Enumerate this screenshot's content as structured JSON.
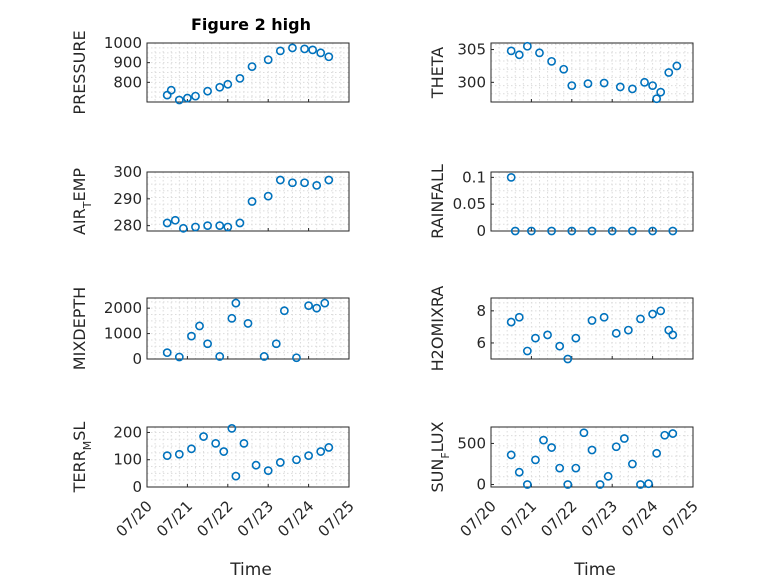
{
  "colors": {
    "marker": "#0072BD",
    "axis": "#262626",
    "grid": "#dcdcdc"
  },
  "figure_title": "Figure 2 high",
  "x_tick_labels": [
    "07/20",
    "07/21",
    "07/22",
    "07/23",
    "07/24",
    "07/25"
  ],
  "bottom_xlabel": "Time",
  "chart_data": [
    {
      "type": "scatter",
      "title": "Figure 2 high",
      "ylabel": "PRESSURE",
      "ylabel_sub": null,
      "xlim": [
        0,
        5
      ],
      "ylim": [
        700,
        1000
      ],
      "yticks": [
        800,
        900,
        1000
      ],
      "grid": true,
      "x": [
        0.5,
        0.6,
        0.8,
        1.0,
        1.2,
        1.5,
        1.8,
        2.0,
        2.3,
        2.6,
        3.0,
        3.3,
        3.6,
        3.9,
        4.1,
        4.3,
        4.5
      ],
      "y": [
        735,
        760,
        710,
        720,
        730,
        755,
        775,
        790,
        820,
        880,
        915,
        960,
        975,
        970,
        965,
        950,
        930
      ]
    },
    {
      "type": "scatter",
      "title": "",
      "ylabel": "THETA",
      "ylabel_sub": null,
      "xlim": [
        0,
        5
      ],
      "ylim": [
        297,
        306
      ],
      "yticks": [
        300,
        305
      ],
      "grid": true,
      "x": [
        0.5,
        0.7,
        0.9,
        1.2,
        1.5,
        1.8,
        2.0,
        2.4,
        2.8,
        3.2,
        3.5,
        3.8,
        4.0,
        4.1,
        4.2,
        4.4,
        4.6
      ],
      "y": [
        304.8,
        304.2,
        305.5,
        304.5,
        303.2,
        302.0,
        299.5,
        299.8,
        299.9,
        299.3,
        299.0,
        300.0,
        299.5,
        297.5,
        298.5,
        301.5,
        302.5
      ]
    },
    {
      "type": "scatter",
      "title": "",
      "ylabel": "AIR",
      "ylabel_sub": "T",
      "ylabel_tail": "EMP",
      "xlim": [
        0,
        5
      ],
      "ylim": [
        278,
        300
      ],
      "yticks": [
        280,
        290,
        300
      ],
      "grid": true,
      "x": [
        0.5,
        0.7,
        0.9,
        1.2,
        1.5,
        1.8,
        2.0,
        2.3,
        2.6,
        3.0,
        3.3,
        3.6,
        3.9,
        4.2,
        4.5
      ],
      "y": [
        281,
        282,
        279,
        279.5,
        280,
        280,
        279.5,
        281,
        289,
        291,
        297,
        296,
        296,
        295,
        297
      ]
    },
    {
      "type": "scatter",
      "title": "",
      "ylabel": "RAINFALL",
      "ylabel_sub": null,
      "xlim": [
        0,
        5
      ],
      "ylim": [
        0,
        0.11
      ],
      "yticks": [
        0,
        0.05,
        0.1
      ],
      "ytick_labels": [
        "0",
        "0.05",
        "0.1"
      ],
      "grid": true,
      "x": [
        0.5,
        0.6,
        1.0,
        1.5,
        2.0,
        2.5,
        3.0,
        3.5,
        4.0,
        4.5
      ],
      "y": [
        0.1,
        0,
        0,
        0,
        0,
        0,
        0,
        0,
        0,
        0
      ]
    },
    {
      "type": "scatter",
      "title": "",
      "ylabel": "MIXDEPTH",
      "ylabel_sub": null,
      "xlim": [
        0,
        5
      ],
      "ylim": [
        0,
        2400
      ],
      "yticks": [
        0,
        1000,
        2000
      ],
      "grid": true,
      "x": [
        0.5,
        0.8,
        1.1,
        1.3,
        1.5,
        1.8,
        2.1,
        2.2,
        2.5,
        2.9,
        3.2,
        3.4,
        3.7,
        4.0,
        4.2,
        4.4
      ],
      "y": [
        250,
        80,
        900,
        1300,
        600,
        100,
        1600,
        2200,
        1400,
        100,
        600,
        1900,
        50,
        2100,
        2000,
        2200
      ]
    },
    {
      "type": "scatter",
      "title": "",
      "ylabel": "H2OMIXRA",
      "ylabel_sub": null,
      "xlim": [
        0,
        5
      ],
      "ylim": [
        5,
        8.8
      ],
      "yticks": [
        6,
        8
      ],
      "grid": true,
      "x": [
        0.5,
        0.7,
        0.9,
        1.1,
        1.4,
        1.7,
        1.9,
        2.1,
        2.5,
        2.8,
        3.1,
        3.4,
        3.7,
        4.0,
        4.2,
        4.4,
        4.5
      ],
      "y": [
        7.3,
        7.6,
        5.5,
        6.3,
        6.5,
        5.8,
        5.0,
        6.3,
        7.4,
        7.6,
        6.6,
        6.8,
        7.5,
        7.8,
        8.0,
        6.8,
        6.5
      ]
    },
    {
      "type": "scatter",
      "title": "",
      "ylabel": "TERR",
      "ylabel_sub": "M",
      "ylabel_tail": "SL",
      "xlim": [
        0,
        5
      ],
      "ylim": [
        0,
        220
      ],
      "yticks": [
        0,
        100,
        200
      ],
      "grid": true,
      "x": [
        0.5,
        0.8,
        1.1,
        1.4,
        1.7,
        1.9,
        2.1,
        2.2,
        2.4,
        2.7,
        3.0,
        3.3,
        3.7,
        4.0,
        4.3,
        4.5
      ],
      "y": [
        115,
        120,
        140,
        185,
        160,
        130,
        215,
        40,
        160,
        80,
        60,
        90,
        100,
        115,
        130,
        145
      ]
    },
    {
      "type": "scatter",
      "title": "",
      "ylabel": "SUN",
      "ylabel_sub": "F",
      "ylabel_tail": "LUX",
      "xlim": [
        0,
        5
      ],
      "ylim": [
        -30,
        700
      ],
      "yticks": [
        0,
        500
      ],
      "grid": true,
      "x": [
        0.5,
        0.7,
        0.9,
        1.1,
        1.3,
        1.5,
        1.7,
        1.9,
        2.1,
        2.3,
        2.5,
        2.7,
        2.9,
        3.1,
        3.3,
        3.5,
        3.7,
        3.9,
        4.1,
        4.3,
        4.5
      ],
      "y": [
        360,
        150,
        0,
        300,
        540,
        450,
        200,
        0,
        200,
        630,
        420,
        0,
        100,
        460,
        560,
        250,
        0,
        10,
        380,
        600,
        620
      ]
    }
  ]
}
